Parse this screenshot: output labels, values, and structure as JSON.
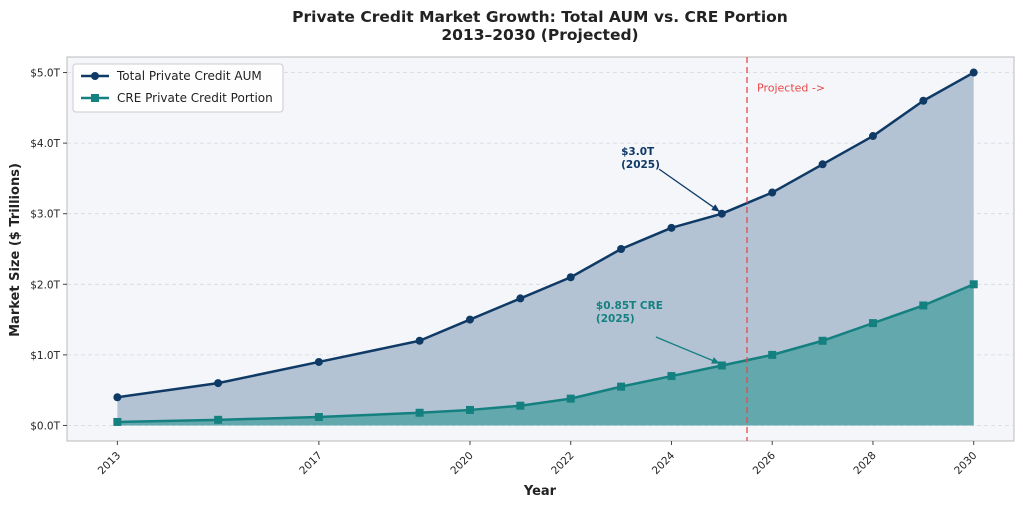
{
  "chart_data": {
    "type": "area",
    "title": "Private Credit Market Growth: Total AUM vs. CRE Portion",
    "subtitle": "2013–2030 (Projected)",
    "xlabel": "Year",
    "ylabel": "Market Size ($ Trillions)",
    "xlim": [
      2012.0,
      2030.8
    ],
    "ylim": [
      -0.22,
      5.22
    ],
    "x_ticks": [
      2013,
      2017,
      2020,
      2022,
      2024,
      2026,
      2028,
      2030
    ],
    "y_ticks": [
      0,
      1,
      2,
      3,
      4,
      5
    ],
    "y_tick_labels": [
      "$0.0T",
      "$1.0T",
      "$2.0T",
      "$3.0T",
      "$4.0T",
      "$5.0T"
    ],
    "grid": "horizontal dashed",
    "legend_position": "top-left",
    "series": [
      {
        "name": "Total Private Credit AUM",
        "color": "#0f3a66",
        "fill": "#b0c0d2",
        "marker": "circle",
        "x": [
          2013,
          2015,
          2017,
          2019,
          2020,
          2021,
          2022,
          2023,
          2024,
          2025,
          2026,
          2027,
          2028,
          2029,
          2030
        ],
        "y": [
          0.4,
          0.6,
          0.9,
          1.2,
          1.5,
          1.8,
          2.1,
          2.5,
          2.8,
          3.0,
          3.3,
          3.7,
          4.1,
          4.6,
          5.0
        ]
      },
      {
        "name": "CRE Private Credit Portion",
        "color": "#158080",
        "fill": "#5fa7ab",
        "marker": "square",
        "x": [
          2013,
          2015,
          2017,
          2019,
          2020,
          2021,
          2022,
          2023,
          2024,
          2025,
          2026,
          2027,
          2028,
          2029,
          2030
        ],
        "y": [
          0.05,
          0.08,
          0.12,
          0.18,
          0.22,
          0.28,
          0.38,
          0.55,
          0.7,
          0.85,
          1.0,
          1.2,
          1.45,
          1.7,
          2.0
        ]
      }
    ],
    "projection_line": {
      "x": 2025.5,
      "label": "Projected ->",
      "color": "#e84848"
    },
    "annotations": [
      {
        "lines": [
          "$3.0T",
          "(2025)"
        ],
        "x": 2025,
        "y": 3.0,
        "text_x": 2023.0,
        "text_y": 3.83,
        "color": "#0f3a66"
      },
      {
        "lines": [
          "$0.85T CRE",
          "(2025)"
        ],
        "x": 2025,
        "y": 0.85,
        "text_x": 2022.5,
        "text_y": 1.65,
        "color": "#158080"
      }
    ]
  }
}
